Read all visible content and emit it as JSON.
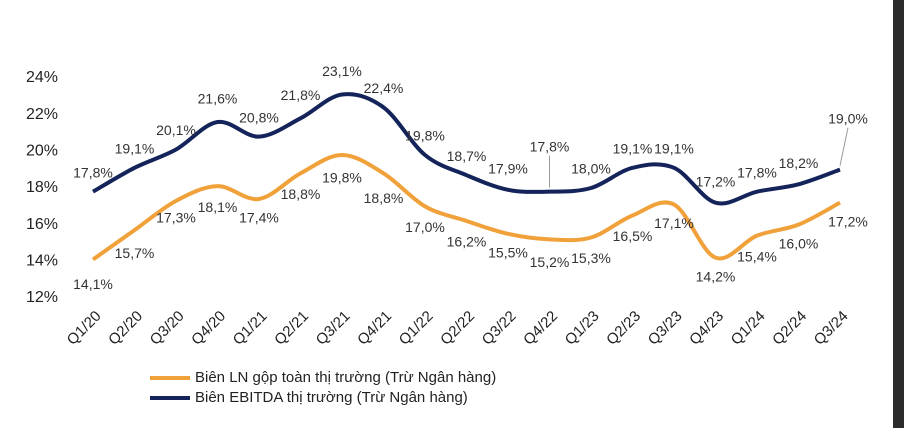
{
  "chart_data": {
    "type": "line",
    "categories": [
      "Q1/20",
      "Q2/20",
      "Q3/20",
      "Q4/20",
      "Q1/21",
      "Q2/21",
      "Q3/21",
      "Q4/21",
      "Q1/22",
      "Q2/22",
      "Q3/22",
      "Q4/22",
      "Q1/23",
      "Q2/23",
      "Q3/23",
      "Q4/23",
      "Q1/24",
      "Q2/24",
      "Q3/24"
    ],
    "series": [
      {
        "name": "Biên LN gộp toàn thị trường (Trừ Ngân hàng)",
        "color": "#f0a13a",
        "values": [
          14.1,
          15.7,
          17.3,
          18.1,
          17.4,
          18.8,
          19.8,
          18.8,
          17.0,
          16.2,
          15.5,
          15.2,
          15.3,
          16.5,
          17.1,
          14.2,
          15.4,
          16.0,
          17.2
        ],
        "value_labels": [
          "14,1%",
          "15,7%",
          "17,3%",
          "18,1%",
          "17,4%",
          "18,8%",
          "19,8%",
          "18,8%",
          "17,0%",
          "16,2%",
          "15,5%",
          "15,2%",
          "15,3%",
          "16,5%",
          "17,1%",
          "14,2%",
          "15,4%",
          "16,0%",
          "17,2%"
        ]
      },
      {
        "name": "Biên EBITDA thị trường (Trừ Ngân hàng)",
        "color": "#14235a",
        "values": [
          17.8,
          19.1,
          20.1,
          21.6,
          20.8,
          21.8,
          23.1,
          22.4,
          19.8,
          18.7,
          17.9,
          17.8,
          18.0,
          19.1,
          19.1,
          17.2,
          17.8,
          18.2,
          19.0
        ],
        "value_labels": [
          "17,8%",
          "19,1%",
          "20,1%",
          "21,6%",
          "20,8%",
          "21,8%",
          "23,1%",
          "22,4%",
          "19,8%",
          "18,7%",
          "17,9%",
          "17,8%",
          "18,0%",
          "19,1%",
          "19,1%",
          "17,2%",
          "17,8%",
          "18,2%",
          "19,0%"
        ]
      }
    ],
    "ylim": [
      12,
      24
    ],
    "yticks": [
      {
        "value": 12,
        "label": "12%"
      },
      {
        "value": 14,
        "label": "14%"
      },
      {
        "value": 16,
        "label": "16%"
      },
      {
        "value": 18,
        "label": "18%"
      },
      {
        "value": 20,
        "label": "20%"
      },
      {
        "value": 22,
        "label": "22%"
      },
      {
        "value": 24,
        "label": "24%"
      }
    ],
    "grid": false,
    "smooth": true
  }
}
